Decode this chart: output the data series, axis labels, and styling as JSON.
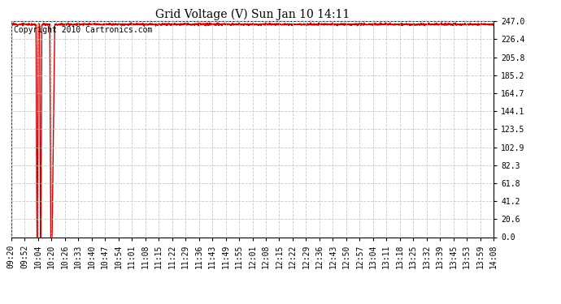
{
  "title": "Grid Voltage (V) Sun Jan 10 14:11",
  "copyright_text": "Copyright 2010 Cartronics.com",
  "line_color": "#cc0000",
  "grid_color": "#c8c8c8",
  "grid_linestyle": "--",
  "yticks": [
    0.0,
    20.6,
    41.2,
    61.8,
    82.3,
    102.9,
    123.5,
    144.1,
    164.7,
    185.2,
    205.8,
    226.4,
    247.0
  ],
  "ymin": 0.0,
  "ymax": 247.0,
  "nominal_voltage": 243.5,
  "x_labels": [
    "09:20",
    "09:52",
    "10:04",
    "10:20",
    "10:26",
    "10:33",
    "10:40",
    "10:47",
    "10:54",
    "11:01",
    "11:08",
    "11:15",
    "11:22",
    "11:29",
    "11:36",
    "11:43",
    "11:49",
    "11:55",
    "12:01",
    "12:08",
    "12:15",
    "12:22",
    "12:29",
    "12:36",
    "12:43",
    "12:50",
    "12:57",
    "13:04",
    "13:11",
    "13:18",
    "13:25",
    "13:32",
    "13:39",
    "13:45",
    "13:53",
    "13:59",
    "14:08"
  ],
  "line_width": 1.0,
  "title_fontsize": 10,
  "tick_fontsize": 7,
  "copyright_fontsize": 7
}
